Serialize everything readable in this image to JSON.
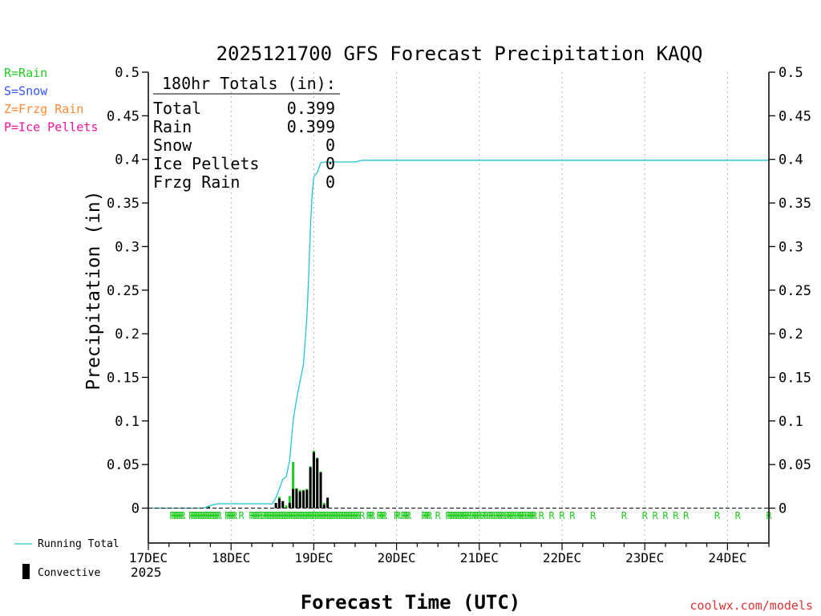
{
  "chart_data": {
    "type": "bar+line",
    "title": "2025121700 GFS Forecast Precipitation KAQQ",
    "ylabel": "Precipitation (in)",
    "xlabel": "Forecast Time (UTC)",
    "ylim": [
      -0.04,
      0.5
    ],
    "xlim_hours": [
      0,
      180
    ],
    "y_ticks": [
      0,
      0.05,
      0.1,
      0.15,
      0.2,
      0.25,
      0.3,
      0.35,
      0.4,
      0.45,
      0.5
    ],
    "y_tick_labels": [
      "0",
      "0.05",
      "0.1",
      "0.15",
      "0.2",
      "0.25",
      "0.3",
      "0.35",
      "0.4",
      "0.45",
      "0.5"
    ],
    "x_ticks": [
      {
        "hour": 0,
        "label": "17DEC"
      },
      {
        "hour": 24,
        "label": "18DEC"
      },
      {
        "hour": 48,
        "label": "19DEC"
      },
      {
        "hour": 72,
        "label": "20DEC"
      },
      {
        "hour": 96,
        "label": "21DEC"
      },
      {
        "hour": 120,
        "label": "22DEC"
      },
      {
        "hour": 144,
        "label": "23DEC"
      },
      {
        "hour": 168,
        "label": "24DEC"
      }
    ],
    "year_label": "2025",
    "precip_type_legend": [
      {
        "text": "R=Rain",
        "color": "#22cc22"
      },
      {
        "text": "S=Snow",
        "color": "#3355ff"
      },
      {
        "text": "Z=Frzg Rain",
        "color": "#ff8833"
      },
      {
        "text": "P=Ice Pellets",
        "color": "#ee1199"
      }
    ],
    "series_legend": [
      {
        "name": "Running Total",
        "color": "#22c4d4",
        "kind": "line"
      },
      {
        "name": "Convective",
        "color": "#000000",
        "kind": "bar"
      }
    ],
    "totals_box": {
      "header": "180hr Totals (in):",
      "rows": [
        {
          "label": "Total",
          "value": "0.399"
        },
        {
          "label": "Rain",
          "value": "0.399"
        },
        {
          "label": "Snow",
          "value": "0"
        },
        {
          "label": "Ice Pellets",
          "value": "0"
        },
        {
          "label": "Frzg Rain",
          "value": "0"
        }
      ]
    },
    "running_total": {
      "hours": [
        0,
        16,
        18,
        20,
        24,
        30,
        36,
        37,
        38,
        39,
        40,
        41,
        42,
        43,
        44,
        45,
        46,
        46.5,
        47,
        47.5,
        48,
        49,
        50,
        51,
        52,
        54,
        60,
        62,
        180
      ],
      "values": [
        0,
        0,
        0.003,
        0.005,
        0.005,
        0.005,
        0.005,
        0.012,
        0.022,
        0.033,
        0.036,
        0.055,
        0.1,
        0.125,
        0.145,
        0.165,
        0.22,
        0.265,
        0.32,
        0.36,
        0.38,
        0.385,
        0.396,
        0.397,
        0.397,
        0.397,
        0.397,
        0.399,
        0.399
      ]
    },
    "total_bars": {
      "hours": [
        17.5,
        37,
        38,
        39,
        40,
        41,
        42,
        43,
        44,
        45,
        46,
        47,
        48,
        49,
        50,
        51,
        52
      ],
      "values": [
        0.002,
        0.006,
        0.013,
        0.008,
        0.003,
        0.014,
        0.053,
        0.023,
        0.021,
        0.021,
        0.022,
        0.048,
        0.066,
        0.058,
        0.042,
        0.006,
        0.012
      ]
    },
    "convective_bars": {
      "hours": [
        17.5,
        37,
        38,
        39,
        41,
        42,
        43,
        44,
        45,
        46,
        47,
        48,
        49,
        50,
        51,
        52
      ],
      "values": [
        0.001,
        0.006,
        0.011,
        0.008,
        0.006,
        0.022,
        0.022,
        0.019,
        0.02,
        0.021,
        0.047,
        0.064,
        0.057,
        0.041,
        0.004,
        0.012
      ]
    },
    "rain_marker_hours": [
      7,
      7.5,
      8,
      8.5,
      9,
      9.5,
      10,
      12.5,
      13,
      13.5,
      14,
      14.5,
      15,
      15.5,
      16,
      16.5,
      17,
      17.5,
      18,
      18.5,
      19,
      19.5,
      20,
      20.5,
      23,
      23.5,
      24,
      24.5,
      25,
      27,
      30,
      30.5,
      31,
      31.5,
      32,
      32.5,
      33.5,
      34,
      34.5,
      35,
      35.5,
      36,
      36.5,
      37,
      37.5,
      38,
      38.5,
      39,
      39.5,
      40,
      40.5,
      41,
      41.5,
      42,
      42.5,
      43,
      43.5,
      44,
      44.5,
      45,
      45.5,
      46,
      46.5,
      47,
      47.5,
      48,
      48.5,
      49,
      49.5,
      50,
      50.5,
      51,
      51.5,
      52,
      52.5,
      53,
      53.5,
      54,
      54.5,
      55,
      55.5,
      56,
      56.5,
      57,
      57.5,
      58,
      58.5,
      59,
      59.5,
      60,
      60.5,
      61,
      62,
      64,
      64.5,
      65,
      67,
      67.5,
      68,
      68.5,
      72,
      72.5,
      74,
      74.5,
      75,
      75.5,
      80,
      80.5,
      81,
      81.5,
      84,
      87,
      87.5,
      88,
      88.5,
      89,
      89.5,
      90,
      90.5,
      91,
      91.5,
      92,
      92.5,
      93,
      94,
      94.5,
      95,
      95.5,
      96,
      97,
      97.5,
      98,
      99,
      99.5,
      100,
      101,
      101.5,
      102,
      102.5,
      103,
      104,
      104.5,
      105,
      105.5,
      106,
      107,
      107.5,
      108,
      108.5,
      109,
      110,
      110.5,
      111,
      111.5,
      112,
      114,
      117,
      120,
      123,
      129,
      138,
      144,
      147,
      150,
      153,
      156,
      165,
      171,
      180
    ],
    "marker_symbol": "R",
    "footer": "coolwx.com/models"
  },
  "colors": {
    "rain": "#22cc22",
    "running_total": "#22c4d4",
    "convective": "#000000",
    "axis": "#000000",
    "grid": "#b0b0b0",
    "footer": "#dd3333"
  }
}
